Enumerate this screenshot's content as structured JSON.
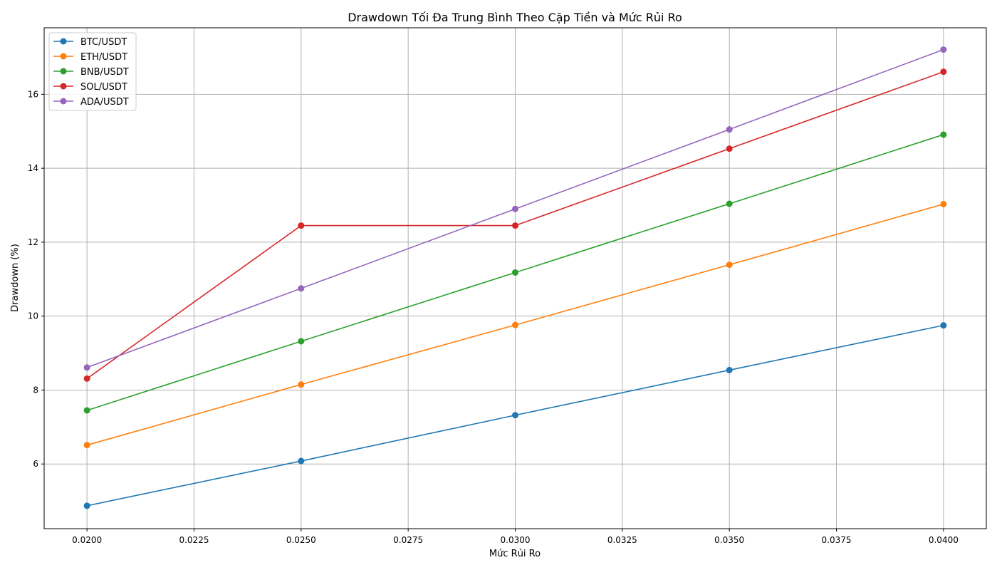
{
  "chart_data": {
    "type": "line",
    "title": "Drawdown Tối Đa Trung Bình Theo Cặp Tiền và Mức Rủi Ro",
    "xlabel": "Mức Rủi Ro",
    "ylabel": "Drawdown (%)",
    "x": [
      0.02,
      0.025,
      0.03,
      0.035,
      0.04
    ],
    "xlim": [
      0.019,
      0.041
    ],
    "ylim": [
      4.25,
      17.8
    ],
    "xticks": [
      "0.0200",
      "0.0225",
      "0.0250",
      "0.0275",
      "0.0300",
      "0.0325",
      "0.0350",
      "0.0375",
      "0.0400"
    ],
    "yticks": [
      "6",
      "8",
      "10",
      "12",
      "14",
      "16"
    ],
    "grid": true,
    "legend_position": "top-left",
    "series": [
      {
        "name": "BTC/USDT",
        "color": "#1f77b4",
        "values": [
          4.87,
          6.08,
          7.32,
          8.54,
          9.75
        ]
      },
      {
        "name": "ETH/USDT",
        "color": "#ff7f0e",
        "values": [
          6.51,
          8.15,
          9.76,
          11.39,
          13.03
        ]
      },
      {
        "name": "BNB/USDT",
        "color": "#2ca02c",
        "values": [
          7.45,
          9.32,
          11.18,
          13.04,
          14.91
        ]
      },
      {
        "name": "SOL/USDT",
        "color": "#d62728",
        "values": [
          8.31,
          12.45,
          12.45,
          14.53,
          16.61
        ]
      },
      {
        "name": "ADA/USDT",
        "color": "#9467bd",
        "values": [
          8.61,
          10.75,
          12.9,
          15.05,
          17.21
        ]
      }
    ]
  }
}
